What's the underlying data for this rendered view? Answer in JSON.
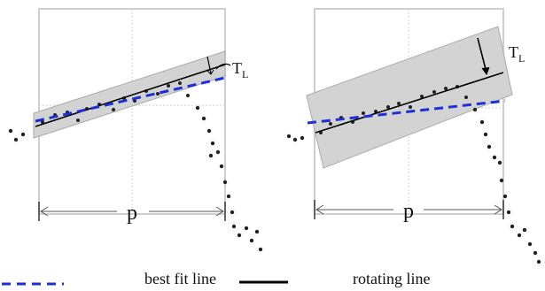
{
  "left_panel": {
    "threshold_label": {
      "main": "T",
      "sub": "L"
    },
    "width_label": "p"
  },
  "right_panel": {
    "threshold_label": {
      "main": "T",
      "sub": "L"
    },
    "width_label": "p"
  },
  "legend": {
    "best_fit_label": "best fit line",
    "rotating_label": "rotating line"
  },
  "colors": {
    "best_fit": "#1f2fd6",
    "rotating": "#000000",
    "band": "#d3d3d3",
    "frame": "#cfcfcf",
    "points": "#222222"
  },
  "icons": {
    "best_fit_swatch": "dashed-blue-line",
    "rotating_swatch": "solid-black-line"
  }
}
